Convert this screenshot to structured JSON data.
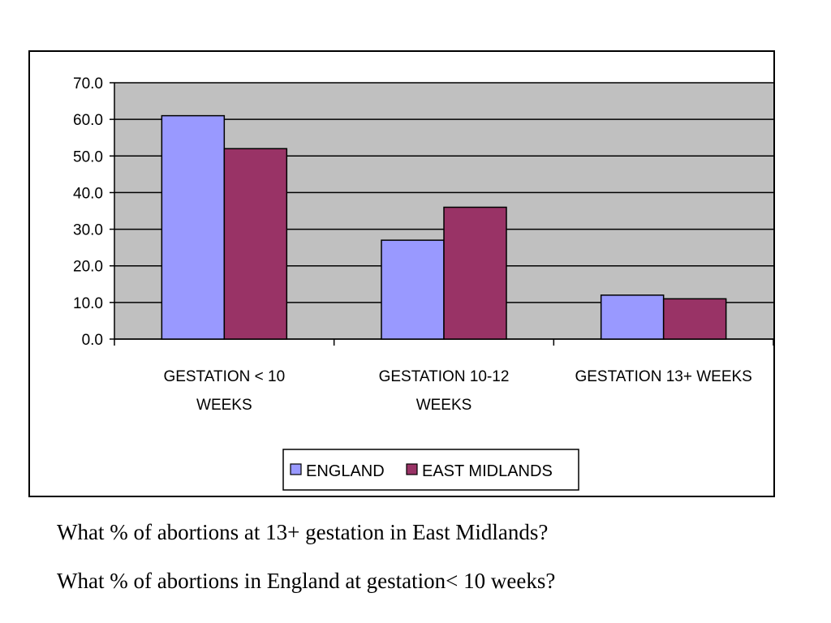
{
  "chart_data": {
    "type": "bar",
    "categories": [
      [
        "GESTATION < 10",
        "WEEKS"
      ],
      [
        "GESTATION 10-12",
        "WEEKS"
      ],
      [
        "GESTATION 13+ WEEKS"
      ]
    ],
    "series": [
      {
        "name": "ENGLAND",
        "color": "#9999ff",
        "values": [
          61,
          27,
          12
        ]
      },
      {
        "name": "EAST MIDLANDS",
        "color": "#993366",
        "values": [
          52,
          36,
          11
        ]
      }
    ],
    "ylim": [
      0,
      70
    ],
    "yticks": [
      "0.0",
      "10.0",
      "20.0",
      "30.0",
      "40.0",
      "50.0",
      "60.0",
      "70.0"
    ],
    "plot_background": "#c0c0c0",
    "grid": true,
    "legend_position": "bottom"
  },
  "questions": [
    "What % of abortions at 13+ gestation in East Midlands?",
    "What % of abortions in England at gestation< 10 weeks?"
  ]
}
